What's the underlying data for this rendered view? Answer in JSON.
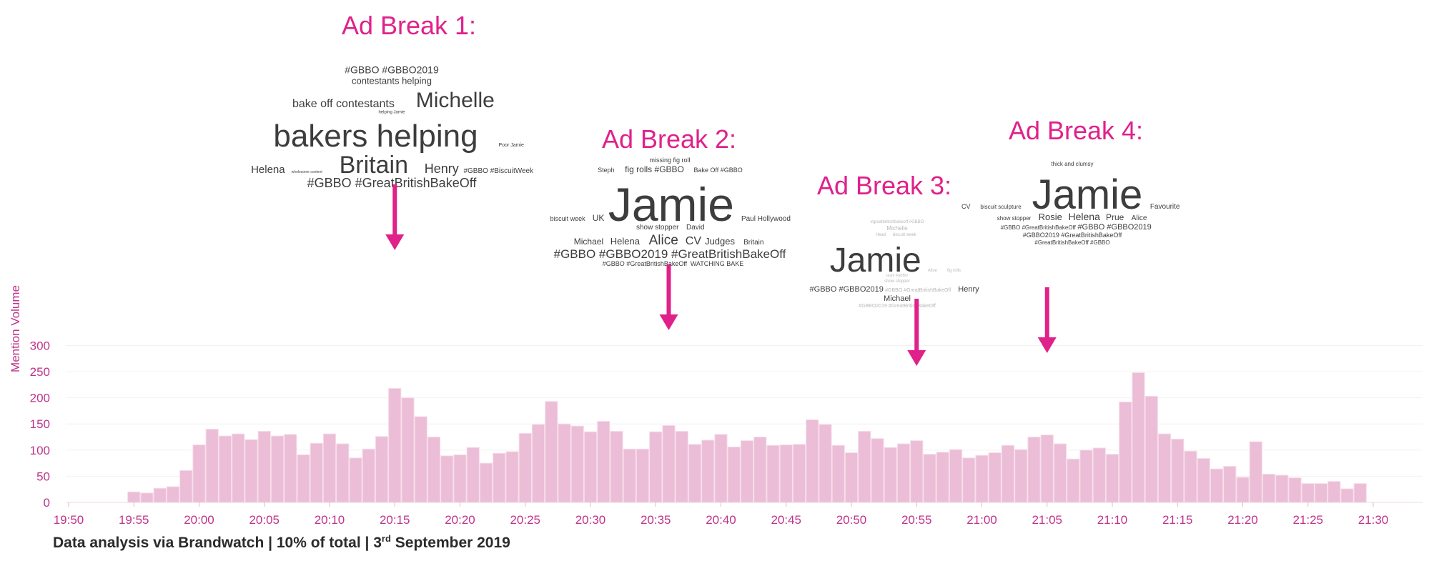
{
  "chart_data": {
    "type": "bar",
    "title": "",
    "ylabel": "Mention Volume",
    "xlabel": "",
    "ylim": [
      0,
      300
    ],
    "yticks": [
      0,
      50,
      100,
      150,
      200,
      250,
      300
    ],
    "xticks": [
      "19:50",
      "19:55",
      "20:00",
      "20:05",
      "20:10",
      "20:15",
      "20:20",
      "20:25",
      "20:30",
      "20:35",
      "20:40",
      "20:45",
      "20:50",
      "20:55",
      "21:00",
      "21:05",
      "21:10",
      "21:15",
      "21:20",
      "21:25",
      "21:30"
    ],
    "grid": true,
    "bar_color": "#ecbdd6",
    "x_start": "19:55",
    "interval_minutes": 1,
    "values": [
      20,
      18,
      27,
      30,
      61,
      110,
      140,
      127,
      131,
      120,
      136,
      127,
      130,
      91,
      113,
      131,
      112,
      85,
      102,
      126,
      218,
      200,
      164,
      125,
      89,
      91,
      105,
      75,
      94,
      97,
      132,
      149,
      193,
      150,
      146,
      135,
      155,
      136,
      102,
      102,
      135,
      147,
      136,
      111,
      119,
      130,
      106,
      118,
      125,
      109,
      110,
      111,
      158,
      149,
      109,
      95,
      136,
      122,
      105,
      112,
      118,
      92,
      96,
      101,
      85,
      90,
      95,
      109,
      101,
      125,
      129,
      112,
      83,
      100,
      104,
      92,
      192,
      248,
      203,
      131,
      121,
      98,
      84,
      64,
      69,
      48,
      116,
      54,
      52,
      47,
      36,
      36,
      40,
      26,
      36
    ]
  },
  "ad_breaks": [
    {
      "title": "Ad Break 1:",
      "time": "20:15",
      "words": [
        {
          "text": "#GBBO #GBBO2019",
          "size": 14
        },
        {
          "text": "contestants helping",
          "size": 13
        },
        {
          "text": "bake off contestants",
          "size": 16
        },
        {
          "text": "Michelle",
          "size": 30
        },
        {
          "text": "helping Jamie",
          "size": 6
        },
        {
          "text": "bakers helping",
          "size": 44
        },
        {
          "text": "Poor Jamie",
          "size": 7
        },
        {
          "text": "Helena",
          "size": 15
        },
        {
          "text": "wholesome content",
          "size": 5
        },
        {
          "text": "Britain",
          "size": 34
        },
        {
          "text": "Henry",
          "size": 18
        },
        {
          "text": "#GBBO #BiscuitWeek",
          "size": 10
        },
        {
          "text": "#GBBO #GreatBritishBakeOff",
          "size": 18
        }
      ]
    },
    {
      "title": "Ad Break 2:",
      "time": "20:36",
      "words": [
        {
          "text": "missing fig roll",
          "size": 9
        },
        {
          "text": "Steph",
          "size": 9
        },
        {
          "text": "fig rolls #GBBO",
          "size": 12
        },
        {
          "text": "Bake Off #GBBO",
          "size": 9
        },
        {
          "text": "biscuit week",
          "size": 9
        },
        {
          "text": "UK",
          "size": 12
        },
        {
          "text": "Jamie",
          "size": 66
        },
        {
          "text": "Paul Hollywood",
          "size": 10
        },
        {
          "text": "show stopper",
          "size": 10
        },
        {
          "text": "David",
          "size": 10
        },
        {
          "text": "Michael",
          "size": 12
        },
        {
          "text": "Helena",
          "size": 13
        },
        {
          "text": "Alice",
          "size": 19
        },
        {
          "text": "CV",
          "size": 16
        },
        {
          "text": "Judges",
          "size": 13
        },
        {
          "text": "Britain",
          "size": 10
        },
        {
          "text": "#GBBO #GBBO2019 #GreatBritishBakeOff",
          "size": 17
        },
        {
          "text": "#GBBO #GreatBritishBakeOff",
          "size": 9
        },
        {
          "text": "WATCHING BAKE",
          "size": 9
        }
      ]
    },
    {
      "title": "Ad Break 3:",
      "time": "20:55",
      "words": [
        {
          "text": "#greatbritishbakeoff #GBBO",
          "size": 6
        },
        {
          "text": "Michelle",
          "size": 8
        },
        {
          "text": "Head",
          "size": 6
        },
        {
          "text": "biscuit week",
          "size": 6
        },
        {
          "text": "Jamie",
          "size": 48
        },
        {
          "text": "Alice",
          "size": 6
        },
        {
          "text": "fig rolls",
          "size": 6
        },
        {
          "text": "team #GBBO",
          "size": 5
        },
        {
          "text": "show stopper",
          "size": 6
        },
        {
          "text": "#GBBO #GBBO2019",
          "size": 11
        },
        {
          "text": "#GBBO #GreatBritishBakeOff",
          "size": 7
        },
        {
          "text": "Henry",
          "size": 11
        },
        {
          "text": "Michael",
          "size": 11
        },
        {
          "text": "#GBBO2019 #GreatBritishBakeOff",
          "size": 7
        }
      ]
    },
    {
      "title": "Ad Break 4:",
      "time": "21:05",
      "words": [
        {
          "text": "thick and clumsy",
          "size": 8
        },
        {
          "text": "CV",
          "size": 9
        },
        {
          "text": "biscuit sculpture",
          "size": 8
        },
        {
          "text": "Jamie",
          "size": 58
        },
        {
          "text": "Favourite",
          "size": 10
        },
        {
          "text": "show stopper",
          "size": 8
        },
        {
          "text": "Rosie",
          "size": 13
        },
        {
          "text": "Helena",
          "size": 14
        },
        {
          "text": "Prue",
          "size": 12
        },
        {
          "text": "Alice",
          "size": 10
        },
        {
          "text": "#GBBO #GreatBritishBakeOff",
          "size": 8
        },
        {
          "text": "#GBBO #GBBO2019",
          "size": 11
        },
        {
          "text": "#GBBO2019 #GreatBritishBakeOff",
          "size": 9
        },
        {
          "text": "#GreatBritishBakeOff #GBBO",
          "size": 8
        }
      ]
    }
  ],
  "footer": {
    "prefix": "Data analysis via Brandwatch | 10% of total | 3",
    "sup": "rd",
    "suffix": " September 2019"
  },
  "colors": {
    "accent": "#e0218a",
    "axis_text": "#c0338a",
    "bar": "#ecbdd6"
  }
}
